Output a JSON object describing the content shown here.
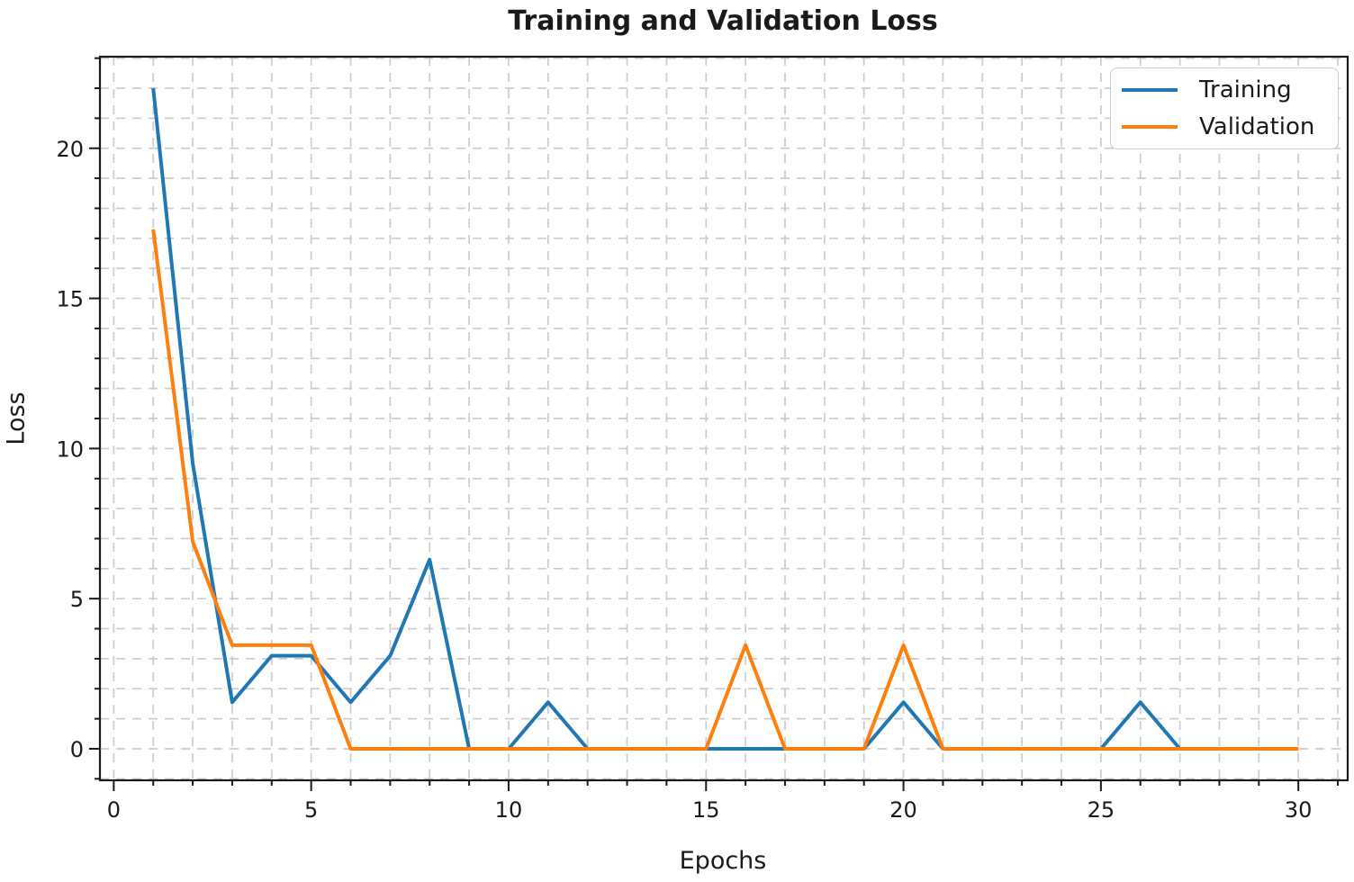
{
  "chart": {
    "title": "Training and Validation Loss",
    "xlabel": "Epochs",
    "ylabel": "Loss"
  },
  "chart_data": {
    "type": "line",
    "title": "Training and Validation Loss",
    "xlabel": "Epochs",
    "ylabel": "Loss",
    "x": [
      1,
      2,
      3,
      4,
      5,
      6,
      7,
      8,
      9,
      10,
      11,
      12,
      13,
      14,
      15,
      16,
      17,
      18,
      19,
      20,
      21,
      22,
      23,
      24,
      25,
      26,
      27,
      28,
      29,
      30
    ],
    "series": [
      {
        "name": "Training",
        "color": "#1f77b4",
        "values": [
          22.0,
          9.5,
          1.55,
          3.1,
          3.1,
          1.55,
          3.1,
          6.3,
          0,
          0,
          1.55,
          0,
          0,
          0,
          0,
          0,
          0,
          0,
          0,
          1.55,
          0,
          0,
          0,
          0,
          0,
          1.55,
          0,
          0,
          0,
          0
        ]
      },
      {
        "name": "Validation",
        "color": "#ff7f0e",
        "values": [
          17.3,
          6.9,
          3.45,
          3.45,
          3.45,
          0,
          0,
          0,
          0,
          0,
          0,
          0,
          0,
          0,
          0,
          3.45,
          0,
          0,
          0,
          3.45,
          0,
          0,
          0,
          0,
          0,
          0,
          0,
          0,
          0,
          0
        ]
      }
    ],
    "xlim": [
      -0.35,
      31.25
    ],
    "ylim": [
      -1.05,
      23.05
    ],
    "xticks": [
      0,
      5,
      10,
      15,
      20,
      25,
      30
    ],
    "yticks": [
      0,
      5,
      10,
      15,
      20
    ],
    "minor_tick_step_x": 1,
    "minor_tick_step_y": 1,
    "grid": "both-major-and-minor, dashed",
    "grid_color": "#cccccc",
    "spine_color": "#1a1a1a",
    "tick_label_color": "#1a1a1a",
    "legend_position": "upper right",
    "line_width": 4
  }
}
